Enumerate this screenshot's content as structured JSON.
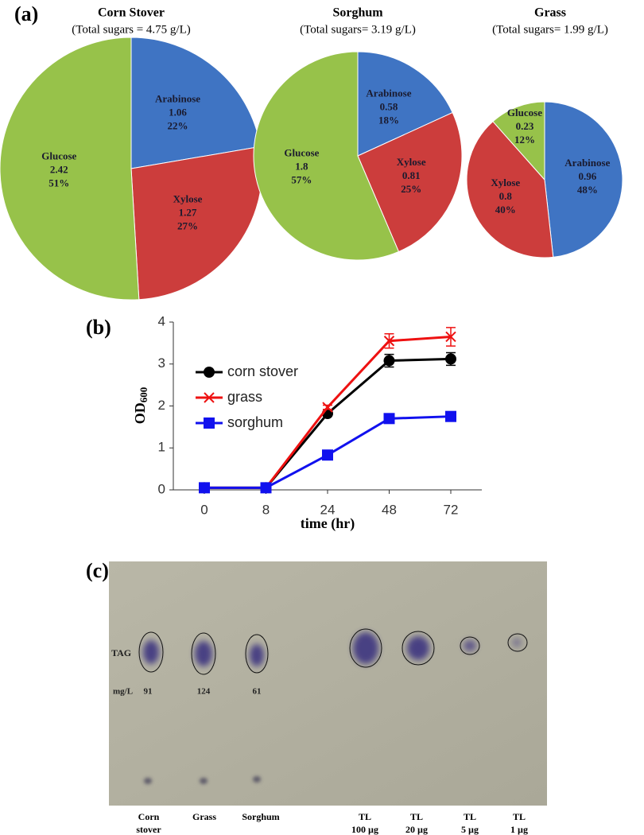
{
  "chart_data": [
    {
      "type": "pie",
      "panel": "(a)",
      "title": "Corn Stover",
      "subtitle": "(Total sugars = 4.75 g/L)",
      "categories": [
        "Arabinose",
        "Xylose",
        "Glucose"
      ],
      "values": [
        1.06,
        1.27,
        2.42
      ],
      "percent_labels": [
        "22%",
        "27%",
        "51%"
      ],
      "colors": [
        "#3f74c3",
        "#cc3d3c",
        "#97c24a"
      ]
    },
    {
      "type": "pie",
      "title": "Sorghum",
      "subtitle": "(Total sugars= 3.19 g/L)",
      "categories": [
        "Arabinose",
        "Xylose",
        "Glucose"
      ],
      "values": [
        0.58,
        0.81,
        1.8
      ],
      "percent_labels": [
        "18%",
        "25%",
        "57%"
      ],
      "colors": [
        "#3f74c3",
        "#cc3d3c",
        "#97c24a"
      ]
    },
    {
      "type": "pie",
      "title": "Grass",
      "subtitle": "(Total sugars= 1.99 g/L)",
      "categories": [
        "Arabinose",
        "Xylose",
        "Glucose"
      ],
      "values": [
        0.96,
        0.8,
        0.23
      ],
      "percent_labels": [
        "48%",
        "40%",
        "12%"
      ],
      "colors": [
        "#3f74c3",
        "#cc3d3c",
        "#97c24a"
      ]
    },
    {
      "type": "line",
      "panel": "(b)",
      "xlabel": "time (hr)",
      "ylabel": "OD",
      "ylabel_sub": "600",
      "categories": [
        "0",
        "8",
        "24",
        "48",
        "72"
      ],
      "ylim": [
        0,
        4
      ],
      "yticks": [
        0,
        1,
        2,
        3,
        4
      ],
      "series": [
        {
          "name": "corn stover",
          "color": "#000000",
          "marker": "circle",
          "values": [
            0.05,
            0.05,
            1.82,
            3.08,
            3.12
          ],
          "errors": [
            0,
            0,
            0.05,
            0.15,
            0.15
          ]
        },
        {
          "name": "grass",
          "color": "#ee1111",
          "marker": "x",
          "values": [
            0.05,
            0.05,
            1.97,
            3.55,
            3.65
          ],
          "errors": [
            0,
            0,
            0.05,
            0.17,
            0.22
          ]
        },
        {
          "name": "sorghum",
          "color": "#1111ee",
          "marker": "square",
          "values": [
            0.05,
            0.05,
            0.83,
            1.7,
            1.75
          ],
          "errors": [
            0,
            0,
            0.04,
            0.06,
            0.06
          ]
        }
      ]
    }
  ],
  "tlc": {
    "panel": "(c)",
    "row_label": "TAG",
    "unit_label": "mg/L",
    "amounts": [
      91,
      124,
      61
    ],
    "lanes": [
      [
        "Corn",
        "stover"
      ],
      [
        "Grass"
      ],
      [
        "Sorghum"
      ],
      [
        "TL",
        "100 µg"
      ],
      [
        "TL",
        "20 µg"
      ],
      [
        "TL",
        "5 µg"
      ],
      [
        "TL",
        "1 µg"
      ]
    ]
  }
}
